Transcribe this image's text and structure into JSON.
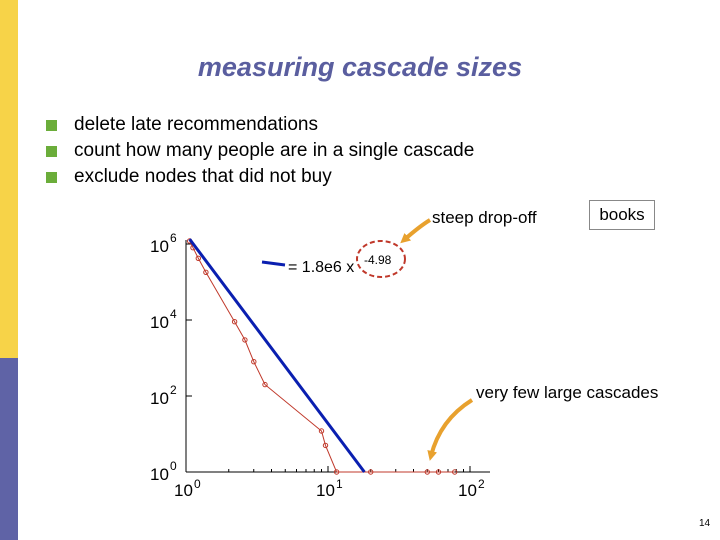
{
  "slide": {
    "title": "measuring cascade sizes",
    "bullets": [
      "delete late recommendations",
      "count how many people are in a single cascade",
      "exclude nodes that did not buy"
    ],
    "page_number": "14",
    "colors": {
      "title": "#5a5e9f",
      "bullet": "#6bad3a",
      "side_top": "#f7d348",
      "side_bottom": "#5f63a6",
      "arrow": "#e8a12e",
      "fit_line": "#0a1fb0",
      "data": "#c0392b"
    }
  },
  "annotations": {
    "steep": "steep drop-off",
    "books": "books",
    "few_large": "very few large cascades"
  },
  "chart_data": {
    "type": "scatter",
    "xscale": "log",
    "yscale": "log",
    "xlim": [
      1,
      100
    ],
    "ylim": [
      1,
      1000000
    ],
    "xtick_labels": [
      {
        "base": "10",
        "exp": "0"
      },
      {
        "base": "10",
        "exp": "1"
      },
      {
        "base": "10",
        "exp": "2"
      }
    ],
    "ytick_labels": [
      {
        "base": "10",
        "exp": "0"
      },
      {
        "base": "10",
        "exp": "2"
      },
      {
        "base": "10",
        "exp": "4"
      },
      {
        "base": "10",
        "exp": "6"
      }
    ],
    "fit": {
      "coefficient": 1800000,
      "exponent": -4.98,
      "label_main": "= 1.8e6 x",
      "label_exp": "-4.98"
    },
    "series": [
      {
        "x": [
          1.06,
          1.12,
          1.22,
          1.38,
          2.2,
          2.6,
          3.0,
          3.6,
          9.0,
          9.6,
          11.5,
          20,
          50,
          60,
          78
        ],
        "y": [
          1200000,
          800000,
          420000,
          180000,
          9000,
          3000,
          800,
          200,
          12,
          5,
          1,
          1,
          1,
          1,
          1
        ]
      }
    ]
  }
}
